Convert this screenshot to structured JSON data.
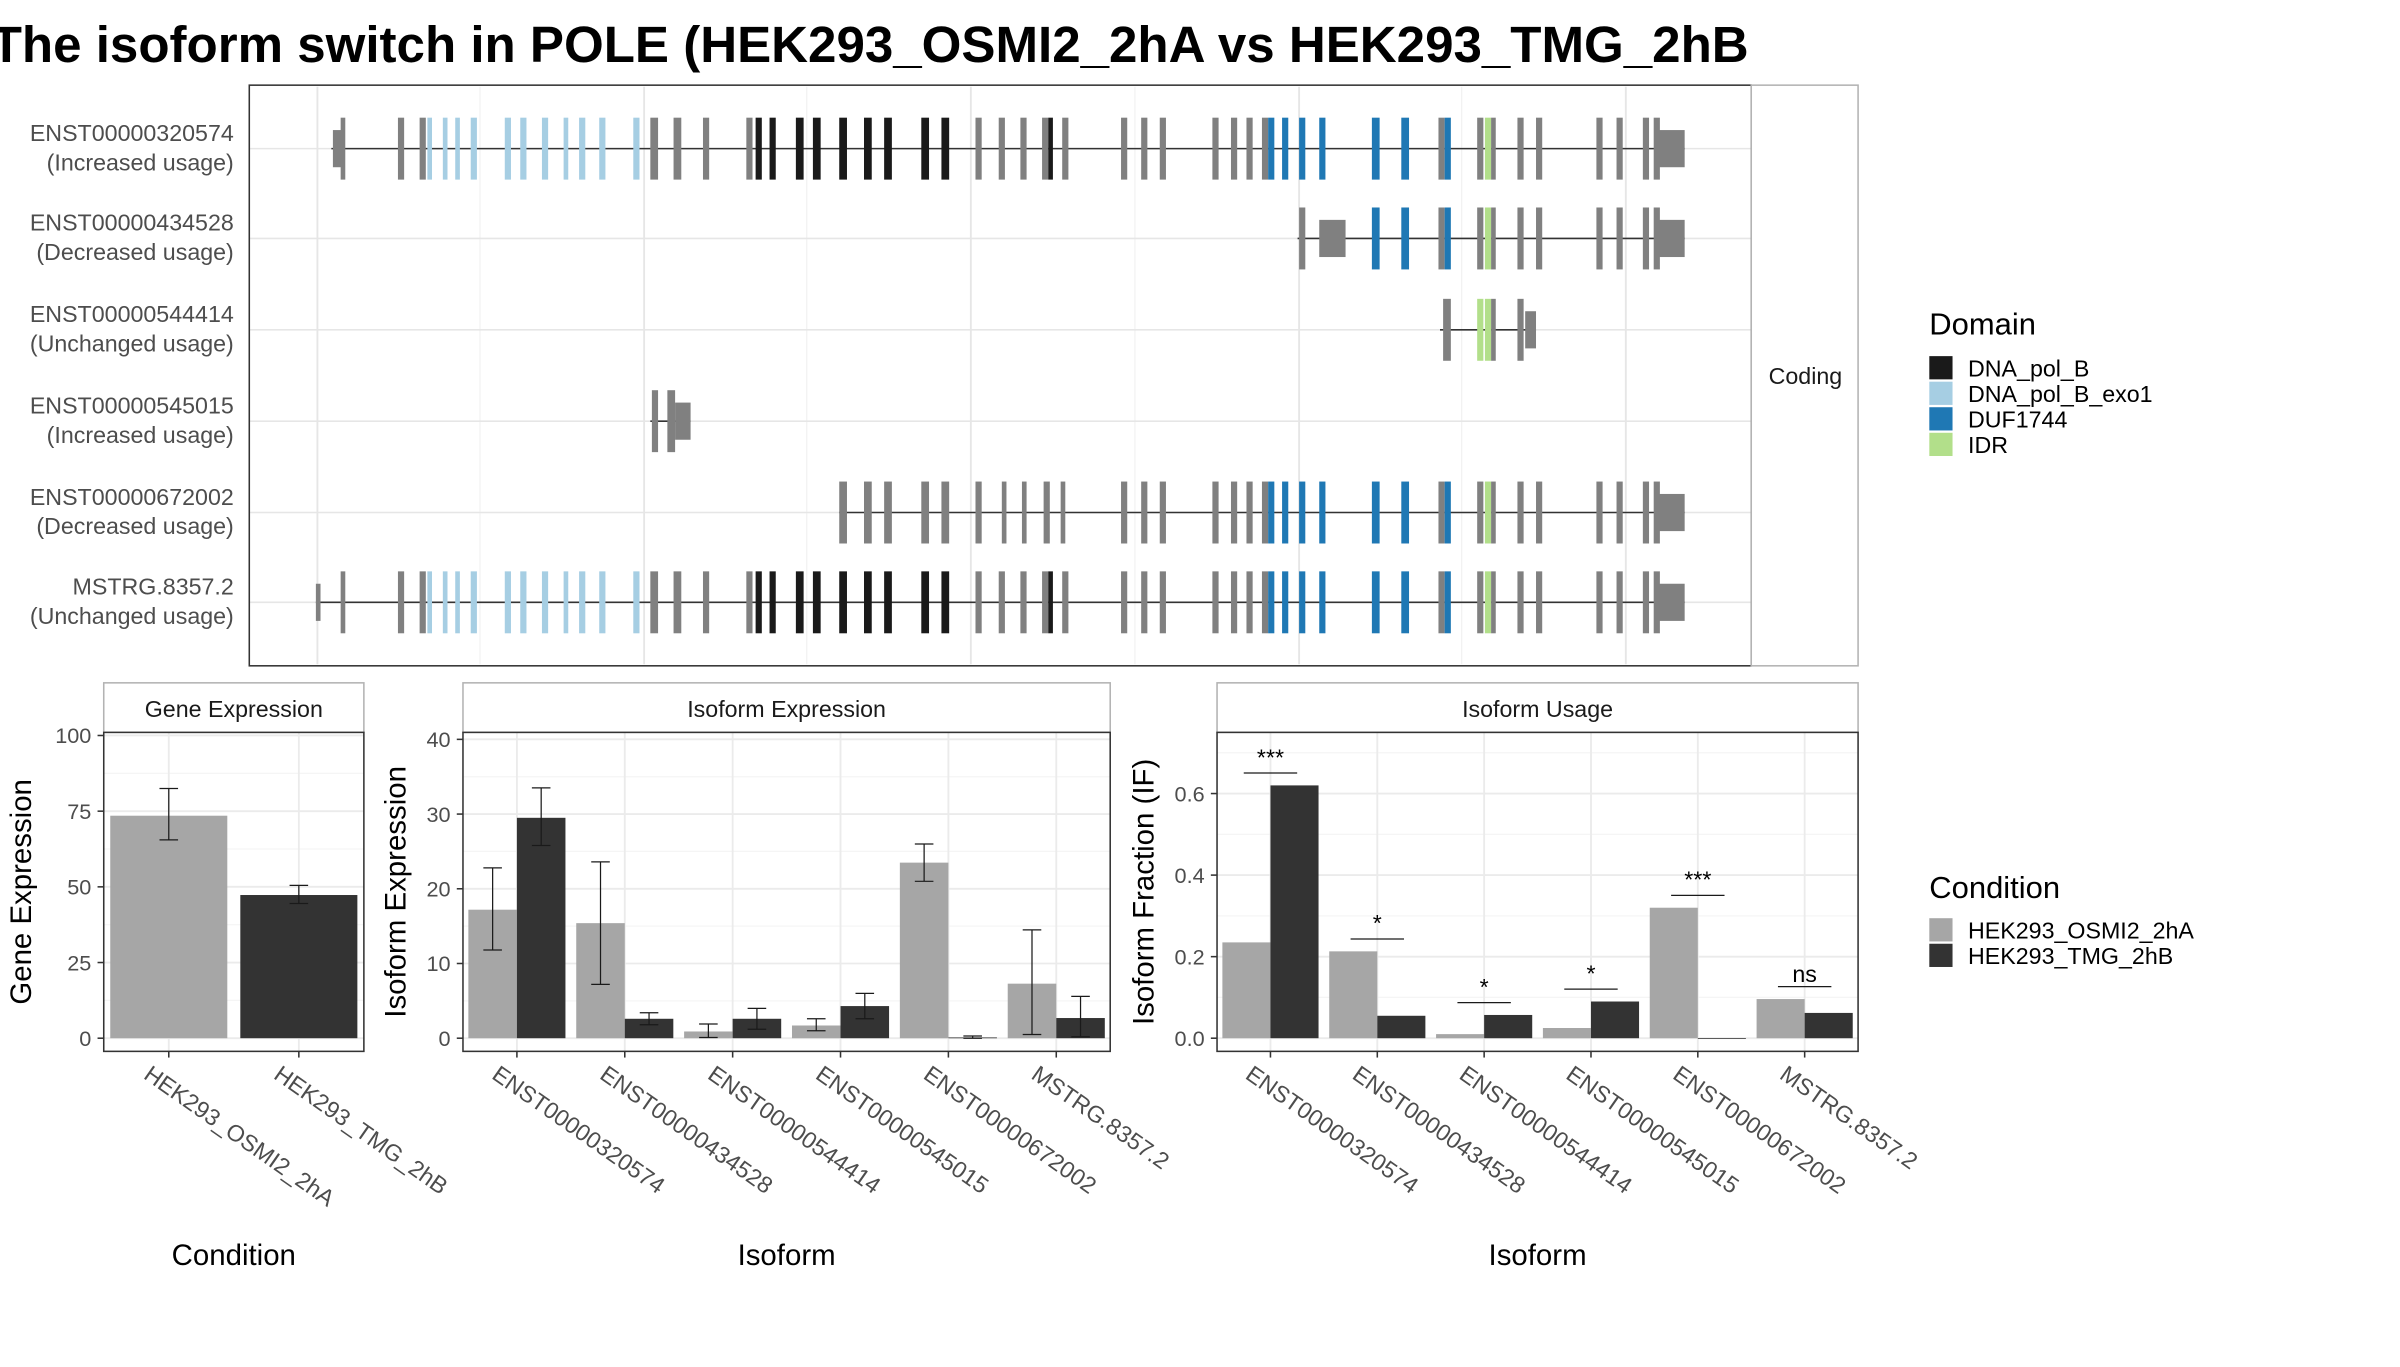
{
  "title": "The isoform switch in POLE (HEK293_OSMI2_2hA vs HEK293_TMG_2hB",
  "colors": {
    "exon": "#808080",
    "domains": {
      "DNA_pol_B": "#1a1a1a",
      "DNA_pol_B_exo1": "#a6cee3",
      "DUF1744": "#1f78b4",
      "IDR": "#b2df8a"
    },
    "condition": {
      "HEK293_OSMI2_2hA": "#a6a6a6",
      "HEK293_TMG_2hB": "#333333"
    }
  },
  "structure": {
    "strip_label": "Coding",
    "transcripts": [
      {
        "id": "ENST00000320574",
        "usage": "(Increased usage)"
      },
      {
        "id": "ENST00000434528",
        "usage": "(Decreased usage)"
      },
      {
        "id": "ENST00000544414",
        "usage": "(Unchanged usage)"
      },
      {
        "id": "ENST00000545015",
        "usage": "(Increased usage)"
      },
      {
        "id": "ENST00000672002",
        "usage": "(Decreased usage)"
      },
      {
        "id": "MSTRG.8357.2",
        "usage": "(Unchanged usage)"
      }
    ]
  },
  "legend_domain": {
    "title": "Domain",
    "items": [
      {
        "label": "DNA_pol_B",
        "color": "#1a1a1a"
      },
      {
        "label": "DNA_pol_B_exo1",
        "color": "#a6cee3"
      },
      {
        "label": "DUF1744",
        "color": "#1f78b4"
      },
      {
        "label": "IDR",
        "color": "#b2df8a"
      }
    ]
  },
  "legend_condition": {
    "title": "Condition",
    "items": [
      {
        "label": "HEK293_OSMI2_2hA",
        "color": "#a6a6a6"
      },
      {
        "label": "HEK293_TMG_2hB",
        "color": "#333333"
      }
    ]
  },
  "chart_data": [
    {
      "type": "bar",
      "title": "Gene Expression",
      "xlabel": "Condition",
      "ylabel": "Gene Expression",
      "ylim": [
        0,
        100
      ],
      "yticks": [
        0,
        25,
        50,
        75,
        100
      ],
      "categories": [
        "HEK293_OSMI2_2hA",
        "HEK293_TMG_2hB"
      ],
      "values": [
        73.5,
        47.3
      ],
      "errors": [
        [
          65.5,
          82.5
        ],
        [
          44.5,
          50.5
        ]
      ]
    },
    {
      "type": "bar",
      "title": "Isoform Expression",
      "xlabel": "Isoform",
      "ylabel": "Isoform Expression",
      "ylim": [
        0,
        40
      ],
      "yticks": [
        0,
        10,
        20,
        30,
        40
      ],
      "categories": [
        "ENST00000320574",
        "ENST00000434528",
        "ENST00000544414",
        "ENST00000545015",
        "ENST00000672002",
        "MSTRG.8357.2"
      ],
      "series": [
        {
          "name": "HEK293_OSMI2_2hA",
          "values": [
            17.2,
            15.4,
            0.9,
            1.7,
            23.5,
            7.3
          ],
          "errors": [
            [
              11.8,
              22.8
            ],
            [
              7.2,
              23.6
            ],
            [
              0.1,
              1.9
            ],
            [
              1.0,
              2.6
            ],
            [
              21.0,
              26.0
            ],
            [
              0.5,
              14.5
            ]
          ]
        },
        {
          "name": "HEK293_TMG_2hB",
          "values": [
            29.5,
            2.6,
            2.6,
            4.3,
            0.1,
            2.7
          ],
          "errors": [
            [
              25.8,
              33.5
            ],
            [
              1.8,
              3.4
            ],
            [
              1.2,
              4.0
            ],
            [
              2.6,
              6.0
            ],
            [
              0.0,
              0.3
            ],
            [
              0.2,
              5.6
            ]
          ]
        }
      ]
    },
    {
      "type": "bar",
      "title": "Isoform Usage",
      "xlabel": "Isoform",
      "ylabel": "Isoform Fraction (IF)",
      "ylim": [
        0,
        0.75
      ],
      "yticks": [
        "0.0",
        "0.2",
        "0.4",
        "0.6"
      ],
      "categories": [
        "ENST00000320574",
        "ENST00000434528",
        "ENST00000544414",
        "ENST00000545015",
        "ENST00000672002",
        "MSTRG.8357.2"
      ],
      "series": [
        {
          "name": "HEK293_OSMI2_2hA",
          "values": [
            0.235,
            0.213,
            0.01,
            0.025,
            0.32,
            0.096
          ]
        },
        {
          "name": "HEK293_TMG_2hB",
          "values": [
            0.62,
            0.055,
            0.057,
            0.09,
            0.0,
            0.062
          ]
        }
      ],
      "significance": [
        "***",
        "*",
        "*",
        "*",
        "***",
        "ns"
      ]
    }
  ]
}
